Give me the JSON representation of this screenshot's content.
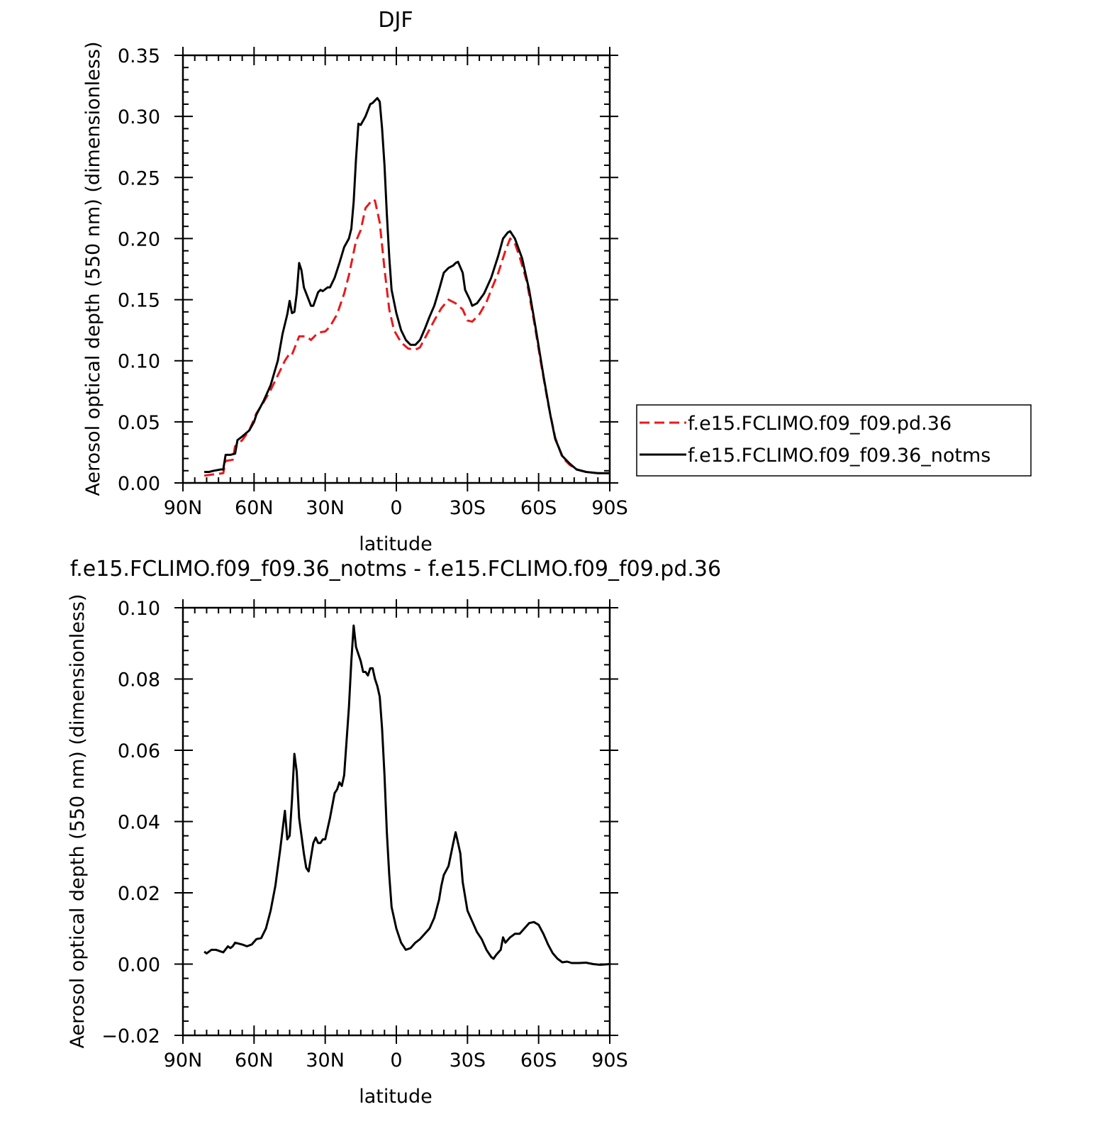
{
  "chart_data": [
    {
      "type": "line",
      "title": "DJF",
      "xlabel": "latitude",
      "ylabel": "Aerosol optical depth (550 nm) (dimensionless)",
      "xlim": [
        90,
        -90
      ],
      "ylim": [
        0.0,
        0.35
      ],
      "x_ticks": [
        90,
        60,
        30,
        0,
        -30,
        -60,
        -90
      ],
      "x_tick_labels": [
        "90N",
        "60N",
        "30N",
        "0",
        "30S",
        "60S",
        "90S"
      ],
      "y_ticks": [
        0.0,
        0.05,
        0.1,
        0.15,
        0.2,
        0.25,
        0.3,
        0.35
      ],
      "y_tick_labels": [
        "0.00",
        "0.05",
        "0.10",
        "0.15",
        "0.20",
        "0.25",
        "0.30",
        "0.35"
      ],
      "grid": false,
      "legend_position": "right",
      "series": [
        {
          "name": "f.e15.FCLIMO.f09_f09.pd.36",
          "color": "#e8191b",
          "dash": "dashed",
          "points": [
            [
              81,
              0.006
            ],
            [
              77,
              0.007
            ],
            [
              73,
              0.008
            ],
            [
              72,
              0.018
            ],
            [
              69,
              0.019
            ],
            [
              68,
              0.03
            ],
            [
              65,
              0.035
            ],
            [
              62,
              0.043
            ],
            [
              59,
              0.057
            ],
            [
              56,
              0.066
            ],
            [
              53,
              0.076
            ],
            [
              50,
              0.088
            ],
            [
              47,
              0.1
            ],
            [
              45,
              0.106
            ],
            [
              44,
              0.105
            ],
            [
              43,
              0.11
            ],
            [
              41,
              0.12
            ],
            [
              38,
              0.12
            ],
            [
              36,
              0.117
            ],
            [
              33,
              0.123
            ],
            [
              30,
              0.124
            ],
            [
              28,
              0.128
            ],
            [
              25,
              0.138
            ],
            [
              22,
              0.155
            ],
            [
              20,
              0.17
            ],
            [
              17,
              0.198
            ],
            [
              15,
              0.207
            ],
            [
              13,
              0.225
            ],
            [
              10,
              0.232
            ],
            [
              9,
              0.231
            ],
            [
              7,
              0.213
            ],
            [
              5,
              0.175
            ],
            [
              3,
              0.142
            ],
            [
              1,
              0.125
            ],
            [
              -2,
              0.115
            ],
            [
              -5,
              0.11
            ],
            [
              -8,
              0.109
            ],
            [
              -10,
              0.111
            ],
            [
              -13,
              0.122
            ],
            [
              -16,
              0.133
            ],
            [
              -19,
              0.143
            ],
            [
              -22,
              0.15
            ],
            [
              -25,
              0.147
            ],
            [
              -28,
              0.142
            ],
            [
              -30,
              0.133
            ],
            [
              -32,
              0.132
            ],
            [
              -35,
              0.138
            ],
            [
              -38,
              0.148
            ],
            [
              -40,
              0.158
            ],
            [
              -43,
              0.172
            ],
            [
              -46,
              0.19
            ],
            [
              -48,
              0.2
            ],
            [
              -50,
              0.196
            ],
            [
              -52,
              0.185
            ],
            [
              -55,
              0.165
            ],
            [
              -58,
              0.133
            ],
            [
              -61,
              0.098
            ],
            [
              -64,
              0.065
            ],
            [
              -67,
              0.037
            ],
            [
              -70,
              0.021
            ],
            [
              -73,
              0.015
            ],
            [
              -76,
              0.011
            ],
            [
              -80,
              0.009
            ],
            [
              -85,
              0.008
            ],
            [
              -90,
              0.008
            ]
          ]
        },
        {
          "name": "f.e15.FCLIMO.f09_f09.36_notms",
          "color": "#000000",
          "dash": "solid",
          "points": [
            [
              81,
              0.009
            ],
            [
              79,
              0.009
            ],
            [
              77,
              0.01
            ],
            [
              74,
              0.011
            ],
            [
              73,
              0.011
            ],
            [
              72,
              0.023
            ],
            [
              70,
              0.023
            ],
            [
              68,
              0.024
            ],
            [
              67,
              0.035
            ],
            [
              65,
              0.038
            ],
            [
              62,
              0.043
            ],
            [
              60,
              0.05
            ],
            [
              59,
              0.056
            ],
            [
              56,
              0.067
            ],
            [
              53,
              0.08
            ],
            [
              50,
              0.1
            ],
            [
              48,
              0.122
            ],
            [
              46,
              0.138
            ],
            [
              45,
              0.149
            ],
            [
              44,
              0.139
            ],
            [
              43,
              0.14
            ],
            [
              42,
              0.155
            ],
            [
              41,
              0.18
            ],
            [
              40,
              0.174
            ],
            [
              39,
              0.16
            ],
            [
              37,
              0.15
            ],
            [
              36,
              0.145
            ],
            [
              35,
              0.145
            ],
            [
              33,
              0.156
            ],
            [
              32,
              0.158
            ],
            [
              31,
              0.157
            ],
            [
              29,
              0.16
            ],
            [
              28,
              0.16
            ],
            [
              26,
              0.168
            ],
            [
              24,
              0.18
            ],
            [
              22,
              0.193
            ],
            [
              20,
              0.2
            ],
            [
              19,
              0.208
            ],
            [
              18,
              0.23
            ],
            [
              17,
              0.265
            ],
            [
              16,
              0.294
            ],
            [
              15,
              0.293
            ],
            [
              13,
              0.3
            ],
            [
              11,
              0.31
            ],
            [
              10,
              0.311
            ],
            [
              9,
              0.313
            ],
            [
              8,
              0.315
            ],
            [
              7,
              0.312
            ],
            [
              6,
              0.29
            ],
            [
              5,
              0.26
            ],
            [
              4,
              0.22
            ],
            [
              3,
              0.185
            ],
            [
              2,
              0.158
            ],
            [
              0,
              0.139
            ],
            [
              -2,
              0.125
            ],
            [
              -4,
              0.117
            ],
            [
              -6,
              0.113
            ],
            [
              -8,
              0.113
            ],
            [
              -10,
              0.117
            ],
            [
              -12,
              0.126
            ],
            [
              -14,
              0.136
            ],
            [
              -16,
              0.145
            ],
            [
              -18,
              0.158
            ],
            [
              -20,
              0.172
            ],
            [
              -22,
              0.176
            ],
            [
              -24,
              0.178
            ],
            [
              -25,
              0.18
            ],
            [
              -26,
              0.181
            ],
            [
              -28,
              0.172
            ],
            [
              -29,
              0.158
            ],
            [
              -31,
              0.15
            ],
            [
              -32,
              0.145
            ],
            [
              -34,
              0.147
            ],
            [
              -37,
              0.155
            ],
            [
              -40,
              0.168
            ],
            [
              -43,
              0.186
            ],
            [
              -45,
              0.2
            ],
            [
              -47,
              0.205
            ],
            [
              -48,
              0.206
            ],
            [
              -50,
              0.2
            ],
            [
              -53,
              0.184
            ],
            [
              -56,
              0.158
            ],
            [
              -59,
              0.124
            ],
            [
              -62,
              0.088
            ],
            [
              -65,
              0.055
            ],
            [
              -67,
              0.036
            ],
            [
              -70,
              0.022
            ],
            [
              -73,
              0.016
            ],
            [
              -76,
              0.011
            ],
            [
              -80,
              0.009
            ],
            [
              -85,
              0.008
            ],
            [
              -90,
              0.008
            ]
          ]
        }
      ]
    },
    {
      "type": "line",
      "title": "f.e15.FCLIMO.f09_f09.36_notms - f.e15.FCLIMO.f09_f09.pd.36",
      "xlabel": "latitude",
      "ylabel": "Aerosol optical depth (550 nm) (dimensionless)",
      "xlim": [
        90,
        -90
      ],
      "ylim": [
        -0.02,
        0.1
      ],
      "x_ticks": [
        90,
        60,
        30,
        0,
        -30,
        -60,
        -90
      ],
      "x_tick_labels": [
        "90N",
        "60N",
        "30N",
        "0",
        "30S",
        "60S",
        "90S"
      ],
      "y_ticks": [
        -0.02,
        0.0,
        0.02,
        0.04,
        0.06,
        0.08,
        0.1
      ],
      "y_tick_labels": [
        "−0.02",
        "0.00",
        "0.02",
        "0.04",
        "0.06",
        "0.08",
        "0.10"
      ],
      "grid": false,
      "series": [
        {
          "color": "#000000",
          "dash": "solid",
          "points": [
            [
              81,
              0.0035
            ],
            [
              80,
              0.003
            ],
            [
              78,
              0.004
            ],
            [
              76,
              0.004
            ],
            [
              73,
              0.0033
            ],
            [
              71,
              0.005
            ],
            [
              70,
              0.0045
            ],
            [
              69,
              0.005
            ],
            [
              68,
              0.006
            ],
            [
              65,
              0.0055
            ],
            [
              63,
              0.005
            ],
            [
              61,
              0.0055
            ],
            [
              59,
              0.007
            ],
            [
              57,
              0.0073
            ],
            [
              55,
              0.01
            ],
            [
              53,
              0.015
            ],
            [
              51,
              0.022
            ],
            [
              49,
              0.032
            ],
            [
              47,
              0.043
            ],
            [
              46,
              0.035
            ],
            [
              45,
              0.036
            ],
            [
              44,
              0.046
            ],
            [
              43,
              0.059
            ],
            [
              42,
              0.054
            ],
            [
              41,
              0.041
            ],
            [
              39,
              0.031
            ],
            [
              38,
              0.027
            ],
            [
              37,
              0.026
            ],
            [
              36,
              0.03
            ],
            [
              35,
              0.034
            ],
            [
              34,
              0.0355
            ],
            [
              33,
              0.034
            ],
            [
              32,
              0.034
            ],
            [
              31,
              0.035
            ],
            [
              30,
              0.035
            ],
            [
              28,
              0.041
            ],
            [
              26,
              0.048
            ],
            [
              25,
              0.049
            ],
            [
              24,
              0.051
            ],
            [
              23,
              0.05
            ],
            [
              22,
              0.053
            ],
            [
              20,
              0.072
            ],
            [
              19,
              0.085
            ],
            [
              18,
              0.095
            ],
            [
              17,
              0.089
            ],
            [
              15,
              0.085
            ],
            [
              14,
              0.082
            ],
            [
              13,
              0.082
            ],
            [
              12,
              0.081
            ],
            [
              11,
              0.083
            ],
            [
              10,
              0.083
            ],
            [
              9,
              0.08
            ],
            [
              8,
              0.078
            ],
            [
              7,
              0.075
            ],
            [
              6,
              0.066
            ],
            [
              5,
              0.053
            ],
            [
              4,
              0.037
            ],
            [
              3,
              0.025
            ],
            [
              2,
              0.016
            ],
            [
              0,
              0.01
            ],
            [
              -2,
              0.006
            ],
            [
              -4,
              0.004
            ],
            [
              -6,
              0.0045
            ],
            [
              -8,
              0.006
            ],
            [
              -10,
              0.007
            ],
            [
              -12,
              0.0085
            ],
            [
              -14,
              0.01
            ],
            [
              -16,
              0.013
            ],
            [
              -18,
              0.018
            ],
            [
              -19,
              0.022
            ],
            [
              -20,
              0.025
            ],
            [
              -22,
              0.0275
            ],
            [
              -24,
              0.034
            ],
            [
              -25,
              0.037
            ],
            [
              -26,
              0.034
            ],
            [
              -27,
              0.031
            ],
            [
              -28,
              0.023
            ],
            [
              -30,
              0.015
            ],
            [
              -32,
              0.012
            ],
            [
              -34,
              0.009
            ],
            [
              -36,
              0.007
            ],
            [
              -38,
              0.004
            ],
            [
              -40,
              0.002
            ],
            [
              -41,
              0.0015
            ],
            [
              -42,
              0.0025
            ],
            [
              -44,
              0.004
            ],
            [
              -45,
              0.0075
            ],
            [
              -46,
              0.006
            ],
            [
              -48,
              0.0075
            ],
            [
              -50,
              0.0085
            ],
            [
              -52,
              0.0085
            ],
            [
              -54,
              0.01
            ],
            [
              -56,
              0.0115
            ],
            [
              -58,
              0.0118
            ],
            [
              -60,
              0.011
            ],
            [
              -62,
              0.0085
            ],
            [
              -64,
              0.0055
            ],
            [
              -66,
              0.003
            ],
            [
              -68,
              0.0015
            ],
            [
              -70,
              0.0005
            ],
            [
              -72,
              0.0007
            ],
            [
              -74,
              0.0003
            ],
            [
              -77,
              0.0003
            ],
            [
              -80,
              0.0004
            ],
            [
              -83,
              0.0
            ],
            [
              -86,
              -0.0002
            ],
            [
              -90,
              0.0
            ]
          ]
        }
      ]
    }
  ]
}
